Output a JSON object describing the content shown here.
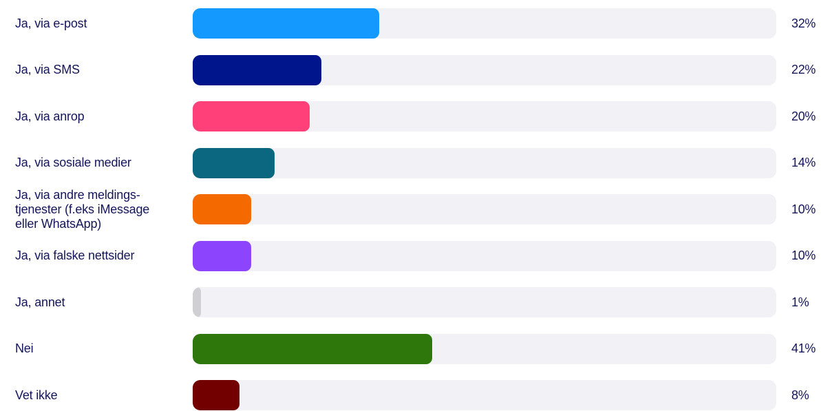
{
  "chart_data": {
    "type": "bar",
    "orientation": "horizontal",
    "title": "",
    "xlabel": "",
    "ylabel": "",
    "xlim": [
      0,
      100
    ],
    "grid": false,
    "legend": "none",
    "categories": [
      "Ja, via e-post",
      "Ja, via SMS",
      "Ja, via anrop",
      "Ja, via sosiale medier",
      "Ja, via andre meldings-\ntjenester (f.eks iMessage\neller WhatsApp)",
      "Ja, via falske nettsider",
      "Ja, annet",
      "Nei",
      "Vet ikke"
    ],
    "values": [
      32,
      22,
      20,
      14,
      10,
      10,
      1,
      41,
      8
    ],
    "value_labels": [
      "32%",
      "22%",
      "20%",
      "14%",
      "10%",
      "10%",
      "1%",
      "41%",
      "8%"
    ],
    "colors": [
      "#1499ff",
      "#00148c",
      "#ff4079",
      "#0b6680",
      "#f56a00",
      "#8c44fc",
      "#d0d0d4",
      "#2d770b",
      "#720000"
    ],
    "track_color": "#f1f1f6",
    "text_color": "#14155a"
  }
}
